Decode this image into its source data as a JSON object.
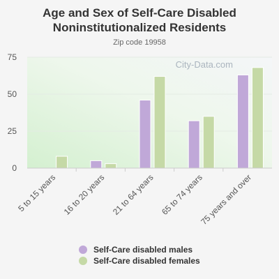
{
  "title": "Age and Sex of Self-Care Disabled Noninstitutionalized Residents",
  "subtitle": "Zip code 19958",
  "watermark": "City-Data.com",
  "colors": {
    "males": "#c0a8d8",
    "females": "#c5d9a6",
    "axis": "#cccccc",
    "text": "#555555"
  },
  "chart_data": {
    "type": "bar",
    "title": "Age and Sex of Self-Care Disabled Noninstitutionalized Residents",
    "subtitle": "Zip code 19958",
    "categories": [
      "5 to 15 years",
      "16 to 20 years",
      "21 to 64 years",
      "65 to 74 years",
      "75 years and over"
    ],
    "series": [
      {
        "name": "Self-Care disabled males",
        "values": [
          0,
          5,
          46,
          32,
          63
        ]
      },
      {
        "name": "Self-Care disabled females",
        "values": [
          8,
          3,
          62,
          35,
          68
        ]
      }
    ],
    "yticks": [
      0,
      25,
      50,
      75
    ],
    "ylim": [
      0,
      75
    ],
    "legend": "bottom"
  }
}
